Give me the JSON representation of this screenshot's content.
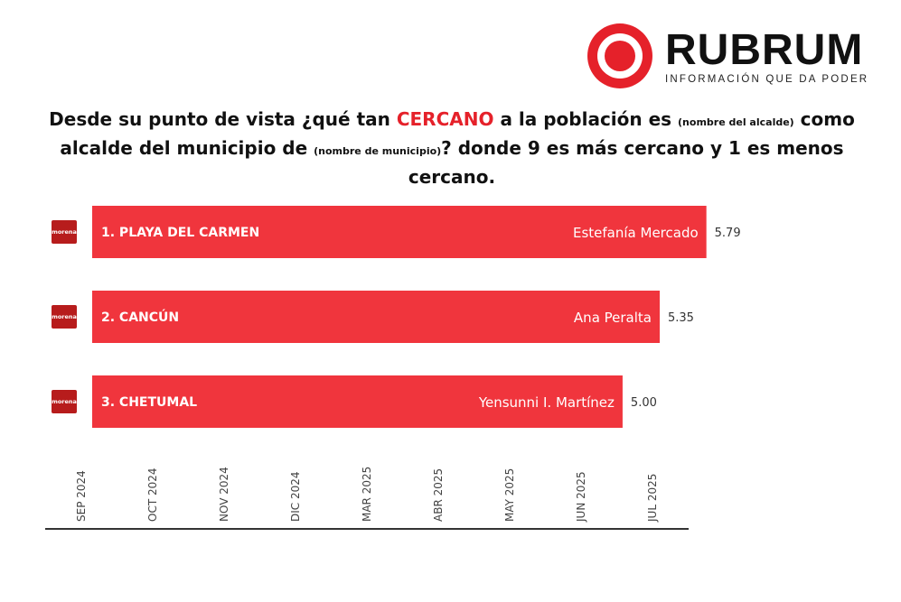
{
  "brand": {
    "name": "RUBRUM",
    "tagline": "INFORMACIÓN QUE DA PODER"
  },
  "title": {
    "part1": "Desde su punto de vista ¿qué tan ",
    "accent": "CERCANO",
    "part2": " a la población es ",
    "small1": "(nombre del alcalde)",
    "part3": " como alcalde del municipio de ",
    "small2": "(nombre de municipio)",
    "part4": "? donde 9 es más cercano y 1 es menos cercano."
  },
  "colors": {
    "bar": "#f0353d",
    "party_badge": "#b71c1c",
    "accent": "#e5212a",
    "axis": "#333333"
  },
  "chart_data": {
    "type": "bar",
    "orientation": "horizontal",
    "categories": [
      "1. PLAYA DEL CARMEN",
      "2. CANCÚN",
      "3. CHETUMAL"
    ],
    "names": [
      "Estefanía Mercado",
      "Ana Peralta",
      "Yensunni I. Martínez"
    ],
    "values": [
      5.79,
      5.35,
      5.0
    ],
    "value_labels": [
      "5.79",
      "5.35",
      "5.00"
    ],
    "party_labels": [
      "morena",
      "morena",
      "morena"
    ],
    "xlim": [
      0,
      6.5
    ],
    "x_tick_labels": [
      "SEP 2024",
      "OCT 2024",
      "NOV 2024",
      "DIC 2024",
      "MAR 2025",
      "ABR 2025",
      "MAY 2025",
      "JUN 2025",
      "JUL 2025"
    ],
    "grid": false,
    "legend": "none"
  }
}
